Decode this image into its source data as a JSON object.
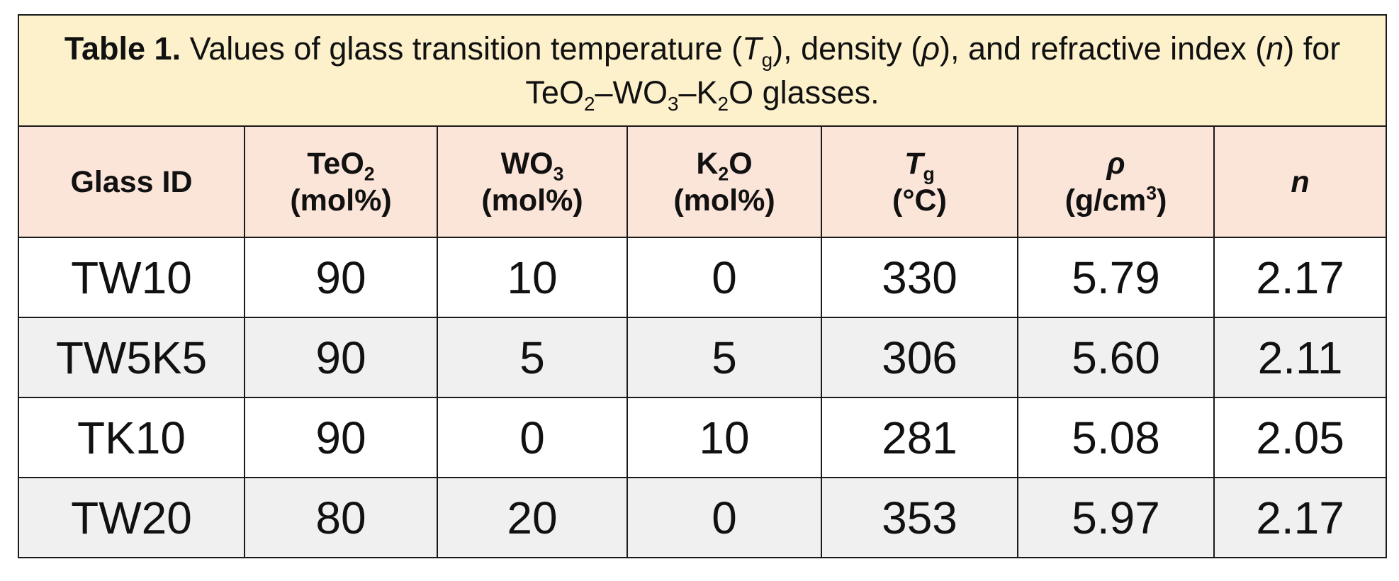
{
  "caption": {
    "label": "Table 1.",
    "parts": [
      " Values of glass transition temperature (",
      "T",
      "g",
      "), density (",
      "ρ",
      "), and refractive index (",
      "n",
      ") for TeO",
      "2",
      "–WO",
      "3",
      "–K",
      "2",
      "O glasses."
    ]
  },
  "table": {
    "header": [
      [
        "Glass ID"
      ],
      [
        "TeO",
        "2",
        "(mol%)"
      ],
      [
        "WO",
        "3",
        "(mol%)"
      ],
      [
        "K",
        "2",
        "O",
        "(mol%)"
      ],
      [
        "T",
        "g",
        "(°C)"
      ],
      [
        "ρ",
        "(g/cm",
        "3",
        ")"
      ],
      [
        "n"
      ]
    ],
    "rows": [
      [
        "TW10",
        90,
        10,
        0,
        330,
        "5.79",
        "2.17"
      ],
      [
        "TW5K5",
        90,
        5,
        5,
        306,
        "5.60",
        "2.11"
      ],
      [
        "TK10",
        90,
        0,
        10,
        281,
        "5.08",
        "2.05"
      ],
      [
        "TW20",
        80,
        20,
        0,
        353,
        "5.97",
        "2.17"
      ]
    ]
  }
}
